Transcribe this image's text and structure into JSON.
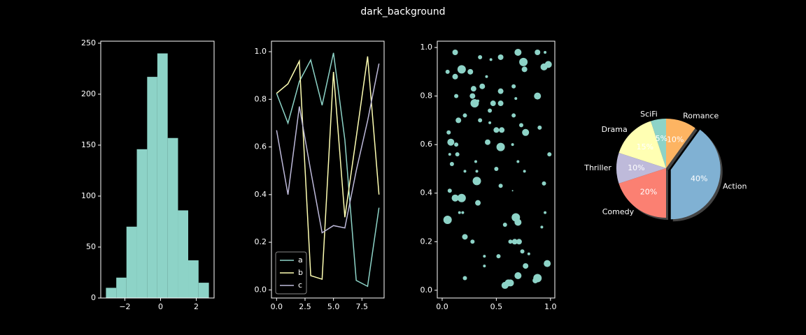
{
  "title": "dark_background",
  "chart_data": [
    {
      "type": "histogram",
      "color": "#8dd3c7",
      "bins": [
        -3.06,
        -2.48,
        -1.91,
        -1.33,
        -0.75,
        -0.18,
        0.4,
        0.98,
        1.55,
        2.13,
        2.71
      ],
      "values": [
        10,
        20,
        70,
        146,
        217,
        240,
        157,
        86,
        37,
        15
      ],
      "xlim": [
        -3.35,
        3.0
      ],
      "ylim": [
        0,
        252
      ],
      "xticks": [
        {
          "value": -2,
          "label": "−2"
        },
        0,
        2
      ],
      "yticks": [
        0,
        50,
        100,
        150,
        200,
        250
      ]
    },
    {
      "type": "line",
      "x": [
        0,
        1,
        2,
        3,
        4,
        5,
        6,
        7,
        8,
        9
      ],
      "series": [
        {
          "name": "a",
          "color": "#8dd3c7",
          "values": [
            0.825,
            0.7,
            0.875,
            0.965,
            0.775,
            0.995,
            0.63,
            0.04,
            0.015,
            0.345
          ]
        },
        {
          "name": "b",
          "color": "#ffffb3",
          "values": [
            0.825,
            0.865,
            0.96,
            0.06,
            0.045,
            0.915,
            0.305,
            0.64,
            0.98,
            0.4
          ]
        },
        {
          "name": "c",
          "color": "#bebada",
          "values": [
            0.67,
            0.4,
            0.77,
            0.5,
            0.24,
            0.27,
            0.26,
            0.5,
            0.71,
            0.95
          ]
        }
      ],
      "legend": "lower left",
      "xlim": [
        -0.45,
        9.45
      ],
      "ylim": [
        -0.034,
        1.044
      ],
      "xticks": [
        {
          "value": 0,
          "label": "0.0"
        },
        2.5,
        {
          "value": 5,
          "label": "5.0"
        },
        7.5
      ],
      "yticks": [
        {
          "value": 0,
          "label": "0.0"
        },
        0.2,
        0.4,
        0.6,
        0.8,
        {
          "value": 1,
          "label": "1.0"
        }
      ]
    },
    {
      "type": "scatter",
      "color": "#8dd3c7",
      "x": [
        0.12,
        0.05,
        0.12,
        0.18,
        0.26,
        0.35,
        0.54,
        0.7,
        0.88,
        0.95,
        0.75,
        0.76,
        0.94,
        0.98,
        0.45,
        0.41,
        0.29,
        0.37,
        0.28,
        0.33,
        0.54,
        0.66,
        0.88,
        0.13,
        0.3,
        0.47,
        0.54,
        0.44,
        0.68,
        0.66,
        0.21,
        0.15,
        0.35,
        0.44,
        0.5,
        0.55,
        0.73,
        0.77,
        0.9,
        0.06,
        0.08,
        0.13,
        0.42,
        0.54,
        0.65,
        0.07,
        0.14,
        0.99,
        0.09,
        0.31,
        0.5,
        0.7,
        0.76,
        0.21,
        0.32,
        0.32,
        0.54,
        0.94,
        0.07,
        0.65,
        0.12,
        0.18,
        0.33,
        0.16,
        0.19,
        0.05,
        0.68,
        0.7,
        0.95,
        0.58,
        0.92,
        0.21,
        0.28,
        0.63,
        0.67,
        0.71,
        0.39,
        0.52,
        0.74,
        0.8,
        0.97,
        0.39,
        0.77,
        0.21,
        0.7,
        0.63,
        0.61,
        0.58,
        0.88,
        0.86
      ],
      "y": [
        0.98,
        0.9,
        0.88,
        0.91,
        0.9,
        0.96,
        0.96,
        0.98,
        0.98,
        0.98,
        0.94,
        0.91,
        0.92,
        0.93,
        0.95,
        0.88,
        0.83,
        0.84,
        0.8,
        0.78,
        0.82,
        0.84,
        0.8,
        0.8,
        0.77,
        0.77,
        0.77,
        0.74,
        0.79,
        0.72,
        0.72,
        0.7,
        0.7,
        0.69,
        0.66,
        0.66,
        0.68,
        0.65,
        0.67,
        0.65,
        0.61,
        0.6,
        0.61,
        0.59,
        0.6,
        0.56,
        0.56,
        0.56,
        0.52,
        0.53,
        0.5,
        0.53,
        0.49,
        0.49,
        0.49,
        0.45,
        0.43,
        0.44,
        0.41,
        0.41,
        0.38,
        0.38,
        0.36,
        0.32,
        0.32,
        0.29,
        0.3,
        0.28,
        0.32,
        0.27,
        0.26,
        0.22,
        0.2,
        0.2,
        0.2,
        0.2,
        0.14,
        0.14,
        0.16,
        0.15,
        0.11,
        0.1,
        0.1,
        0.05,
        0.06,
        0.03,
        0.03,
        0.02,
        0.05,
        0.04
      ],
      "sizes": [
        16,
        9,
        16,
        36,
        16,
        9,
        16,
        25,
        16,
        4,
        36,
        16,
        25,
        25,
        4,
        4,
        16,
        16,
        16,
        4,
        16,
        9,
        25,
        9,
        36,
        16,
        16,
        9,
        4,
        9,
        9,
        16,
        9,
        4,
        16,
        16,
        9,
        25,
        9,
        9,
        25,
        9,
        16,
        36,
        4,
        4,
        9,
        9,
        9,
        4,
        9,
        4,
        4,
        4,
        4,
        36,
        9,
        9,
        9,
        1,
        25,
        36,
        16,
        4,
        4,
        36,
        36,
        25,
        4,
        9,
        4,
        16,
        9,
        9,
        16,
        16,
        4,
        9,
        9,
        4,
        25,
        4,
        16,
        9,
        25,
        25,
        25,
        25,
        36,
        16
      ],
      "xlim": [
        -0.045,
        1.04
      ],
      "ylim": [
        -0.032,
        1.026
      ],
      "xticks": [
        {
          "value": 0,
          "label": "0.0"
        },
        0.5,
        {
          "value": 1,
          "label": "1.0"
        }
      ],
      "yticks": [
        {
          "value": 0,
          "label": "0.0"
        },
        0.2,
        0.4,
        0.6,
        0.8,
        {
          "value": 1,
          "label": "1.0"
        }
      ]
    },
    {
      "type": "pie",
      "categories": [
        "SciFi",
        "Drama",
        "Thriller",
        "Comedy",
        "Action",
        "Romance"
      ],
      "values": [
        5,
        15,
        10,
        20,
        40,
        10
      ],
      "value_labels": [
        "5%",
        "15%",
        "10%",
        "20%",
        "40%",
        "10%"
      ],
      "colors": [
        "#8dd3c7",
        "#ffffb3",
        "#bebada",
        "#fb8072",
        "#80b1d3",
        "#fdb462"
      ],
      "explode": [
        0,
        0,
        0,
        0,
        0.1,
        0
      ],
      "startangle": 90,
      "shadow": true
    }
  ]
}
